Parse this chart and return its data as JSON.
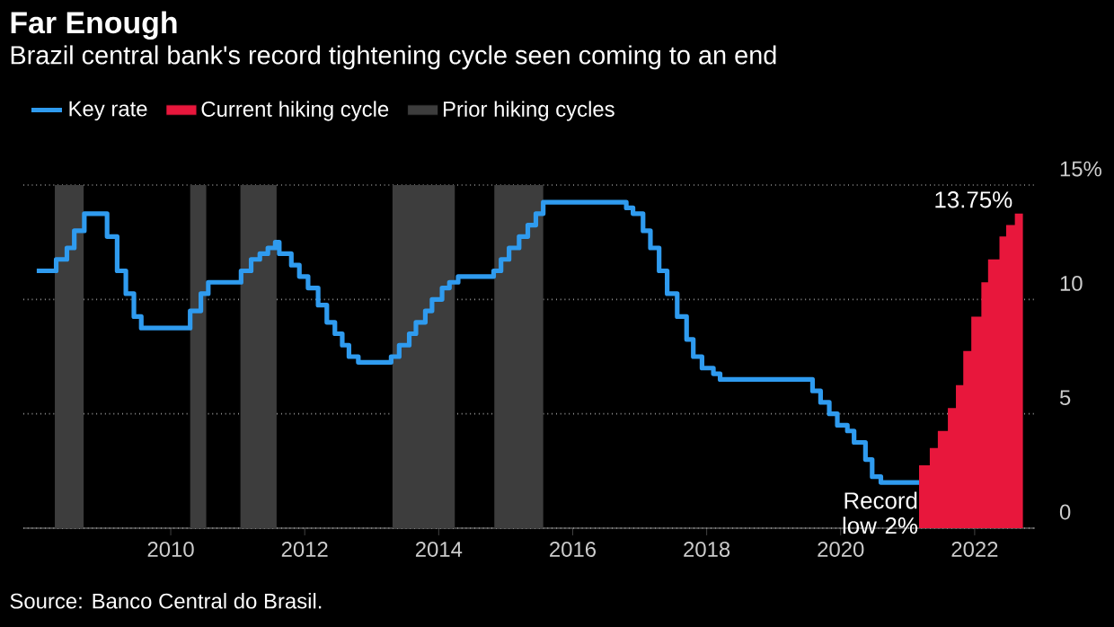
{
  "chart_data": {
    "type": "step",
    "title": "Far Enough",
    "subtitle": "Brazil central bank's record tightening cycle seen coming to an end",
    "series": [
      {
        "name": "Key rate",
        "color": "#2f9bef",
        "x": [
          2008.0,
          2008.29,
          2008.45,
          2008.56,
          2008.71,
          2009.05,
          2009.2,
          2009.33,
          2009.45,
          2009.56,
          2010.29,
          2010.45,
          2010.56,
          2011.05,
          2011.2,
          2011.33,
          2011.45,
          2011.56,
          2011.62,
          2011.8,
          2011.92,
          2012.05,
          2012.2,
          2012.33,
          2012.45,
          2012.56,
          2012.66,
          2012.8,
          2013.29,
          2013.41,
          2013.56,
          2013.66,
          2013.8,
          2013.9,
          2014.05,
          2014.16,
          2014.29,
          2014.82,
          2014.93,
          2015.05,
          2015.2,
          2015.33,
          2015.45,
          2015.56,
          2016.8,
          2016.9,
          2017.05,
          2017.16,
          2017.29,
          2017.41,
          2017.56,
          2017.7,
          2017.8,
          2017.93,
          2018.1,
          2018.2,
          2019.58,
          2019.7,
          2019.83,
          2019.95,
          2020.1,
          2020.2,
          2020.37,
          2020.47,
          2020.6,
          2021.17
        ],
        "values": [
          11.25,
          11.75,
          12.25,
          13,
          13.75,
          12.75,
          11.25,
          10.25,
          9.25,
          8.75,
          9.5,
          10.25,
          10.75,
          11.25,
          11.75,
          12,
          12.25,
          12.5,
          12,
          11.5,
          11,
          10.5,
          9.75,
          9,
          8.5,
          8,
          7.5,
          7.25,
          7.5,
          8,
          8.5,
          9,
          9.5,
          10,
          10.5,
          10.75,
          11,
          11.25,
          11.75,
          12.25,
          12.75,
          13.25,
          13.75,
          14.25,
          14,
          13.75,
          13,
          12.25,
          11.25,
          10.25,
          9.25,
          8.25,
          7.5,
          7,
          6.75,
          6.5,
          6,
          5.5,
          5,
          4.5,
          4.25,
          3.75,
          3,
          2.25,
          2,
          2
        ]
      },
      {
        "name": "Current hiking cycle",
        "type": "area",
        "color": "#e8173c",
        "x": [
          2021.17,
          2021.33,
          2021.45,
          2021.6,
          2021.72,
          2021.83,
          2021.95,
          2022.1,
          2022.2,
          2022.37,
          2022.47,
          2022.6,
          2022.72
        ],
        "values": [
          2.75,
          3.5,
          4.25,
          5.25,
          6.25,
          7.75,
          9.25,
          10.75,
          11.75,
          12.75,
          13.25,
          13.75,
          13.75
        ]
      }
    ],
    "bands": [
      {
        "axis": "x",
        "from": 2008.27,
        "to": 2008.7,
        "label": "Prior hiking cycles",
        "color": "#3d3d3d"
      },
      {
        "axis": "x",
        "from": 2010.29,
        "to": 2010.53,
        "color": "#3d3d3d"
      },
      {
        "axis": "x",
        "from": 2011.04,
        "to": 2011.58,
        "color": "#3d3d3d"
      },
      {
        "axis": "x",
        "from": 2013.31,
        "to": 2014.24,
        "color": "#3d3d3d"
      },
      {
        "axis": "x",
        "from": 2014.83,
        "to": 2015.56,
        "color": "#3d3d3d"
      }
    ],
    "xlim": [
      2007.8,
      2022.9
    ],
    "xticks": [
      2010,
      2012,
      2014,
      2016,
      2018,
      2020,
      2022
    ],
    "ylim": [
      0,
      15
    ],
    "yticks": [
      0,
      5,
      10,
      {
        "value": 15,
        "label": "15%"
      }
    ],
    "annotations": [
      {
        "text": "13.75%",
        "x": 2022.6,
        "y": 13.75
      },
      {
        "text": "Record low 2%",
        "x": 2020.6,
        "y": 2
      },
      "Source: Banco Central do Brasil."
    ],
    "grid": "y",
    "legend": "top left"
  }
}
